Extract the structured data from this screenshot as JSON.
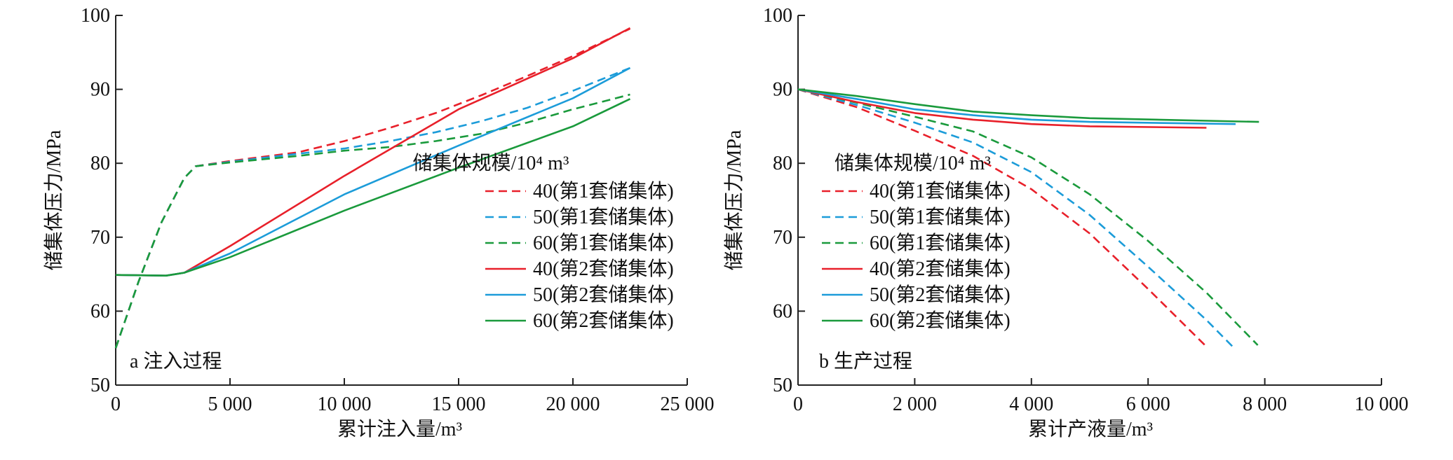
{
  "chart_data": [
    {
      "type": "line",
      "panel_label": "a 注入过程",
      "xlabel": "累计注入量/m³",
      "ylabel": "储集体压力/MPa",
      "xlim": [
        0,
        25000
      ],
      "ylim": [
        50,
        100
      ],
      "x_ticks": [
        0,
        5000,
        10000,
        15000,
        20000,
        25000
      ],
      "x_tick_labels": [
        "0",
        "5 000",
        "10 000",
        "15 000",
        "20 000",
        "25 000"
      ],
      "y_ticks": [
        50,
        60,
        70,
        80,
        90,
        100
      ],
      "y_tick_labels": [
        "50",
        "60",
        "70",
        "80",
        "90",
        "100"
      ],
      "legend_title": "储集体规模/10⁴ m³",
      "legend_position": "right",
      "series": [
        {
          "name": "40(第1套储集体)",
          "color": "#e8202a",
          "dash": true,
          "points": [
            [
              0,
              55
            ],
            [
              1000,
              64
            ],
            [
              2000,
              72
            ],
            [
              3000,
              78
            ],
            [
              3500,
              79.6
            ],
            [
              5000,
              80.3
            ],
            [
              8000,
              81.5
            ],
            [
              10000,
              83
            ],
            [
              12000,
              84.8
            ],
            [
              14000,
              86.8
            ],
            [
              16000,
              89.2
            ],
            [
              18000,
              91.8
            ],
            [
              20000,
              94.5
            ],
            [
              22500,
              98.2
            ]
          ]
        },
        {
          "name": "50(第1套储集体)",
          "color": "#1c9cd9",
          "dash": true,
          "points": [
            [
              0,
              55
            ],
            [
              1000,
              64
            ],
            [
              2000,
              72
            ],
            [
              3000,
              78
            ],
            [
              3500,
              79.6
            ],
            [
              5000,
              80.2
            ],
            [
              8000,
              81.3
            ],
            [
              10000,
              82
            ],
            [
              12000,
              83
            ],
            [
              14000,
              84.2
            ],
            [
              16000,
              85.7
            ],
            [
              18000,
              87.5
            ],
            [
              20000,
              89.8
            ],
            [
              22500,
              92.9
            ]
          ]
        },
        {
          "name": "60(第1套储集体)",
          "color": "#1a9a3c",
          "dash": true,
          "points": [
            [
              0,
              55
            ],
            [
              1000,
              64
            ],
            [
              2000,
              72
            ],
            [
              3000,
              78
            ],
            [
              3500,
              79.6
            ],
            [
              5000,
              80.1
            ],
            [
              8000,
              81
            ],
            [
              10000,
              81.7
            ],
            [
              12000,
              82.2
            ],
            [
              14000,
              83
            ],
            [
              16000,
              84
            ],
            [
              18000,
              85.5
            ],
            [
              20000,
              87.3
            ],
            [
              22500,
              89.3
            ]
          ]
        },
        {
          "name": "40(第2套储集体)",
          "color": "#e8202a",
          "dash": false,
          "points": [
            [
              0,
              64.9
            ],
            [
              2200,
              64.8
            ],
            [
              3000,
              65.2
            ],
            [
              5000,
              68.8
            ],
            [
              10000,
              78.3
            ],
            [
              15000,
              87.3
            ],
            [
              20000,
              94.2
            ],
            [
              22500,
              98.3
            ]
          ]
        },
        {
          "name": "50(第2套储集体)",
          "color": "#1c9cd9",
          "dash": false,
          "points": [
            [
              0,
              64.9
            ],
            [
              2200,
              64.8
            ],
            [
              3000,
              65.2
            ],
            [
              5000,
              67.8
            ],
            [
              10000,
              75.8
            ],
            [
              15000,
              82.4
            ],
            [
              20000,
              88.8
            ],
            [
              22500,
              92.9
            ]
          ]
        },
        {
          "name": "60(第2套储集体)",
          "color": "#1a9a3c",
          "dash": false,
          "points": [
            [
              0,
              64.9
            ],
            [
              2200,
              64.8
            ],
            [
              3000,
              65.2
            ],
            [
              5000,
              67.3
            ],
            [
              10000,
              73.6
            ],
            [
              15000,
              79.4
            ],
            [
              20000,
              85
            ],
            [
              22500,
              88.7
            ]
          ]
        }
      ]
    },
    {
      "type": "line",
      "panel_label": "b 生产过程",
      "xlabel": "累计产液量/m³",
      "ylabel": "储集体压力/MPa",
      "xlim": [
        0,
        10000
      ],
      "ylim": [
        50,
        100
      ],
      "x_ticks": [
        0,
        2000,
        4000,
        6000,
        8000,
        10000
      ],
      "x_tick_labels": [
        "0",
        "2 000",
        "4 000",
        "6 000",
        "8 000",
        "10 000"
      ],
      "y_ticks": [
        50,
        60,
        70,
        80,
        90,
        100
      ],
      "y_tick_labels": [
        "50",
        "60",
        "70",
        "80",
        "90",
        "100"
      ],
      "legend_title": "储集体规模/10⁴ m³",
      "legend_position": "left",
      "series": [
        {
          "name": "40(第1套储集体)",
          "color": "#e8202a",
          "dash": true,
          "points": [
            [
              0,
              90
            ],
            [
              1000,
              87.6
            ],
            [
              2000,
              84.4
            ],
            [
              3000,
              81
            ],
            [
              4000,
              76.5
            ],
            [
              5000,
              70.5
            ],
            [
              6000,
              63
            ],
            [
              7000,
              55.2
            ]
          ]
        },
        {
          "name": "50(第1套储集体)",
          "color": "#1c9cd9",
          "dash": true,
          "points": [
            [
              0,
              90
            ],
            [
              1000,
              87.9
            ],
            [
              2000,
              85.5
            ],
            [
              3000,
              82.8
            ],
            [
              4000,
              78.8
            ],
            [
              5000,
              73
            ],
            [
              6000,
              66
            ],
            [
              7000,
              58.8
            ],
            [
              7450,
              55.2
            ]
          ]
        },
        {
          "name": "60(第1套储集体)",
          "color": "#1a9a3c",
          "dash": true,
          "points": [
            [
              0,
              90
            ],
            [
              1000,
              88.2
            ],
            [
              2000,
              86.3
            ],
            [
              3000,
              84.3
            ],
            [
              4000,
              80.8
            ],
            [
              5000,
              75.8
            ],
            [
              6000,
              69.5
            ],
            [
              7000,
              62.5
            ],
            [
              7880,
              55.4
            ]
          ]
        },
        {
          "name": "40(第2套储集体)",
          "color": "#e8202a",
          "dash": false,
          "points": [
            [
              0,
              90
            ],
            [
              1000,
              88.3
            ],
            [
              2000,
              86.8
            ],
            [
              3000,
              85.9
            ],
            [
              4000,
              85.3
            ],
            [
              5000,
              85
            ],
            [
              7000,
              84.8
            ]
          ]
        },
        {
          "name": "50(第2套储集体)",
          "color": "#1c9cd9",
          "dash": false,
          "points": [
            [
              0,
              90
            ],
            [
              1000,
              88.7
            ],
            [
              2000,
              87.3
            ],
            [
              3000,
              86.5
            ],
            [
              4000,
              85.9
            ],
            [
              5000,
              85.6
            ],
            [
              7500,
              85.3
            ]
          ]
        },
        {
          "name": "60(第2套储集体)",
          "color": "#1a9a3c",
          "dash": false,
          "points": [
            [
              0,
              90
            ],
            [
              1000,
              89.1
            ],
            [
              2000,
              88
            ],
            [
              3000,
              87
            ],
            [
              4000,
              86.5
            ],
            [
              5000,
              86.1
            ],
            [
              7900,
              85.6
            ]
          ]
        }
      ]
    }
  ]
}
